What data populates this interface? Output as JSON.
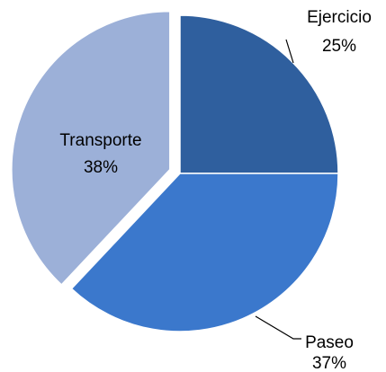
{
  "chart_data": {
    "type": "pie",
    "categories": [
      "Ejercicio",
      "Paseo",
      "Transporte"
    ],
    "values": [
      25,
      37,
      38
    ],
    "value_labels": [
      "25%",
      "37%",
      "38%"
    ],
    "colors": [
      "#2f5f9e",
      "#3b78cc",
      "#9cb0d8"
    ],
    "exploded": [
      false,
      false,
      true
    ]
  }
}
